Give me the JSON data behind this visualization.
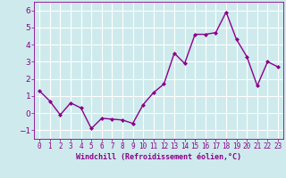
{
  "x": [
    0,
    1,
    2,
    3,
    4,
    5,
    6,
    7,
    8,
    9,
    10,
    11,
    12,
    13,
    14,
    15,
    16,
    17,
    18,
    19,
    20,
    21,
    22,
    23
  ],
  "y": [
    1.3,
    0.7,
    -0.1,
    0.6,
    0.3,
    -0.9,
    -0.3,
    -0.35,
    -0.4,
    -0.6,
    0.5,
    1.2,
    1.7,
    3.5,
    2.9,
    4.6,
    4.6,
    4.7,
    5.9,
    4.3,
    3.3,
    1.6,
    3.0,
    2.7
  ],
  "line_color": "#8b008b",
  "marker": "D",
  "marker_size": 2.0,
  "linewidth": 1.0,
  "xlabel": "Windchill (Refroidissement éolien,°C)",
  "xlabel_fontsize": 6.0,
  "yticks": [
    -1,
    0,
    1,
    2,
    3,
    4,
    5,
    6
  ],
  "xlim": [
    -0.5,
    23.5
  ],
  "ylim": [
    -1.5,
    6.5
  ],
  "background_color": "#ceeaed",
  "grid_color": "#ffffff",
  "tick_label_color": "#8b008b",
  "ytick_fontsize": 6.5,
  "xtick_fontsize": 5.5,
  "xtick_labels": [
    "0",
    "1",
    "2",
    "3",
    "4",
    "5",
    "6",
    "7",
    "8",
    "9",
    "10",
    "11",
    "12",
    "13",
    "14",
    "15",
    "16",
    "17",
    "18",
    "19",
    "20",
    "21",
    "22",
    "23"
  ]
}
